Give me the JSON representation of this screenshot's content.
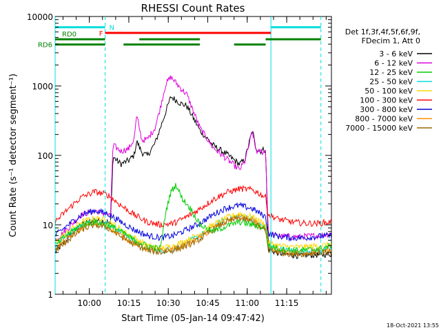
{
  "chart_data": {
    "type": "line",
    "title": "RHESSI Count Rates",
    "xlabel": "Start Time (05-Jan-14 09:47:42)",
    "ylabel": "Count Rate (s⁻¹ detector segment⁻¹)",
    "yscale": "log",
    "ylim": [
      1,
      10000
    ],
    "xlim_minutes_after_0947": [
      0,
      105
    ],
    "x_ticks": [
      "10:00",
      "10:15",
      "10:30",
      "10:45",
      "11:00",
      "11:15"
    ],
    "y_ticks": [
      "1",
      "10",
      "100",
      "1000",
      "10000"
    ],
    "footer_date": "18-Oct-2021 13:55",
    "legend_position": "right",
    "legend_header": [
      "Det 1f,3f,4f,5f,6f,9f,",
      "FDecim 1, Att 0"
    ],
    "series": [
      {
        "name": "3 - 6 keV",
        "color": "#000000",
        "x": [
          0,
          5,
          10,
          15,
          20,
          21,
          22,
          25,
          28,
          30,
          31,
          33,
          35,
          38,
          40,
          42,
          44,
          46,
          48,
          50,
          55,
          60,
          65,
          70,
          72,
          75,
          76,
          77,
          78,
          79,
          80,
          81,
          84,
          87,
          92,
          100,
          105
        ],
        "y": [
          4,
          6.5,
          10,
          12,
          11,
          10,
          95,
          75,
          85,
          100,
          160,
          110,
          98,
          150,
          250,
          420,
          700,
          620,
          550,
          520,
          230,
          140,
          105,
          75,
          85,
          230,
          140,
          120,
          115,
          120,
          122,
          4.5,
          4,
          3.8,
          3.6,
          3.7,
          3.8
        ]
      },
      {
        "name": "6 - 12 keV",
        "color": "#dd00dd",
        "x": [
          0,
          5,
          10,
          15,
          20,
          21,
          22,
          25,
          28,
          30,
          31,
          33,
          35,
          38,
          40,
          42,
          44,
          46,
          48,
          50,
          55,
          60,
          65,
          70,
          72,
          75,
          76,
          77,
          78,
          79,
          80,
          81,
          84,
          87,
          92,
          100,
          105
        ],
        "y": [
          6,
          9,
          14,
          16,
          14,
          13,
          140,
          115,
          125,
          170,
          370,
          165,
          170,
          250,
          490,
          1050,
          1350,
          1100,
          900,
          760,
          250,
          130,
          90,
          62,
          80,
          220,
          130,
          110,
          115,
          112,
          118,
          7.5,
          7,
          6.8,
          6.7,
          7,
          7.5
        ]
      },
      {
        "name": "12 - 25 keV",
        "color": "#00cc00",
        "x": [
          0,
          5,
          10,
          15,
          20,
          25,
          30,
          35,
          40,
          42,
          44,
          46,
          48,
          50,
          52,
          55,
          60,
          65,
          70,
          75,
          80,
          81,
          85,
          90,
          95,
          100,
          105
        ],
        "y": [
          5,
          7.5,
          10,
          11,
          10,
          8,
          6,
          5,
          4.5,
          15,
          30,
          38,
          25,
          20,
          16,
          10,
          8,
          9.5,
          11,
          10,
          9,
          5,
          4.5,
          4.3,
          4.3,
          4.5,
          5
        ]
      },
      {
        "name": "25 - 50 keV",
        "color": "#00dddd",
        "x": [
          0,
          5,
          10,
          15,
          20,
          25,
          30,
          35,
          40,
          45,
          50,
          55,
          60,
          65,
          70,
          75,
          80,
          81,
          85,
          90,
          95,
          100,
          105
        ],
        "y": [
          5,
          7.5,
          10,
          11.5,
          10.5,
          8,
          6,
          4.5,
          4.2,
          4.5,
          5.5,
          7,
          9.5,
          12,
          13.5,
          12,
          9,
          5,
          4.5,
          4.2,
          4.2,
          4.3,
          4.5
        ]
      },
      {
        "name": "50 - 100 keV",
        "color": "#ffd700",
        "x": [
          0,
          5,
          10,
          15,
          20,
          25,
          30,
          35,
          40,
          45,
          50,
          55,
          60,
          65,
          70,
          75,
          80,
          81,
          85,
          90,
          95,
          100,
          105
        ],
        "y": [
          5.5,
          8,
          11,
          12.5,
          11.5,
          8.5,
          6.5,
          5,
          4.6,
          5,
          6,
          7.5,
          10,
          12.5,
          14.5,
          13,
          10,
          5.5,
          5,
          4.8,
          4.8,
          5,
          5.2
        ]
      },
      {
        "name": "100 - 300 keV",
        "color": "#ff0000",
        "x": [
          0,
          5,
          10,
          15,
          20,
          25,
          30,
          35,
          40,
          45,
          50,
          55,
          60,
          65,
          70,
          75,
          80,
          81,
          85,
          90,
          95,
          100,
          105
        ],
        "y": [
          11,
          17,
          25,
          30,
          27,
          19,
          14,
          11,
          10,
          10.5,
          13,
          17,
          23,
          29,
          33,
          32,
          25,
          14,
          12,
          11,
          10.5,
          10.5,
          11
        ]
      },
      {
        "name": "300 - 800 keV",
        "color": "#0000dd",
        "x": [
          0,
          5,
          10,
          15,
          20,
          25,
          30,
          35,
          40,
          45,
          50,
          55,
          60,
          65,
          70,
          75,
          80,
          81,
          85,
          90,
          95,
          100,
          105
        ],
        "y": [
          7,
          10,
          14,
          16,
          14.5,
          11,
          8.5,
          7,
          6.5,
          7,
          8.5,
          10.5,
          14,
          17.5,
          19,
          17,
          13,
          7.5,
          6.8,
          6.5,
          6.5,
          6.8,
          7
        ]
      },
      {
        "name": "800 - 7000 keV",
        "color": "#ff8c00",
        "x": [
          0,
          5,
          10,
          15,
          20,
          25,
          30,
          35,
          40,
          45,
          50,
          55,
          60,
          65,
          70,
          75,
          80,
          81,
          85,
          90,
          95,
          100,
          105
        ],
        "y": [
          4.5,
          6.5,
          9,
          10.5,
          9.5,
          7,
          5.5,
          4.5,
          4.2,
          4.5,
          5.2,
          6.5,
          9,
          11.5,
          13,
          11.5,
          8.5,
          4.5,
          4.2,
          4,
          4,
          4.2,
          4.3
        ]
      },
      {
        "name": "7000 - 15000 keV",
        "color": "#996600",
        "x": [
          0,
          5,
          10,
          15,
          20,
          25,
          30,
          35,
          40,
          45,
          50,
          55,
          60,
          65,
          70,
          75,
          80,
          81,
          85,
          90,
          95,
          100,
          105
        ],
        "y": [
          4.2,
          6,
          8.5,
          10,
          9,
          6.8,
          5.2,
          4.3,
          4,
          4.3,
          5,
          6.2,
          8.5,
          11,
          12.5,
          11,
          8,
          4.3,
          4,
          3.8,
          3.8,
          4,
          4.1
        ]
      }
    ],
    "state_bars": [
      {
        "label": "N",
        "color": "#00dddd",
        "y": 7000,
        "segments": [
          [
            0,
            19
          ],
          [
            82,
            101
          ]
        ]
      },
      {
        "label": "F",
        "color": "#ff0000",
        "y": 5800,
        "segments": [
          [
            19,
            82
          ]
        ]
      },
      {
        "label": "RD0",
        "color": "#008000",
        "y": 4700,
        "segments": [
          [
            0,
            19
          ],
          [
            32,
            55
          ],
          [
            80,
            101
          ]
        ]
      },
      {
        "label": "RD6",
        "color": "#008000",
        "y": 3950,
        "segments": [
          [
            0,
            19
          ],
          [
            26,
            55
          ],
          [
            68,
            80
          ]
        ]
      }
    ],
    "vlines": [
      {
        "x": 0,
        "style": "solid",
        "color": "#00dddd"
      },
      {
        "x": 19,
        "style": "dashed",
        "color": "#00dddd"
      },
      {
        "x": 82,
        "style": "solid",
        "color": "#00dddd"
      },
      {
        "x": 101,
        "style": "dashed",
        "color": "#00dddd"
      }
    ]
  }
}
